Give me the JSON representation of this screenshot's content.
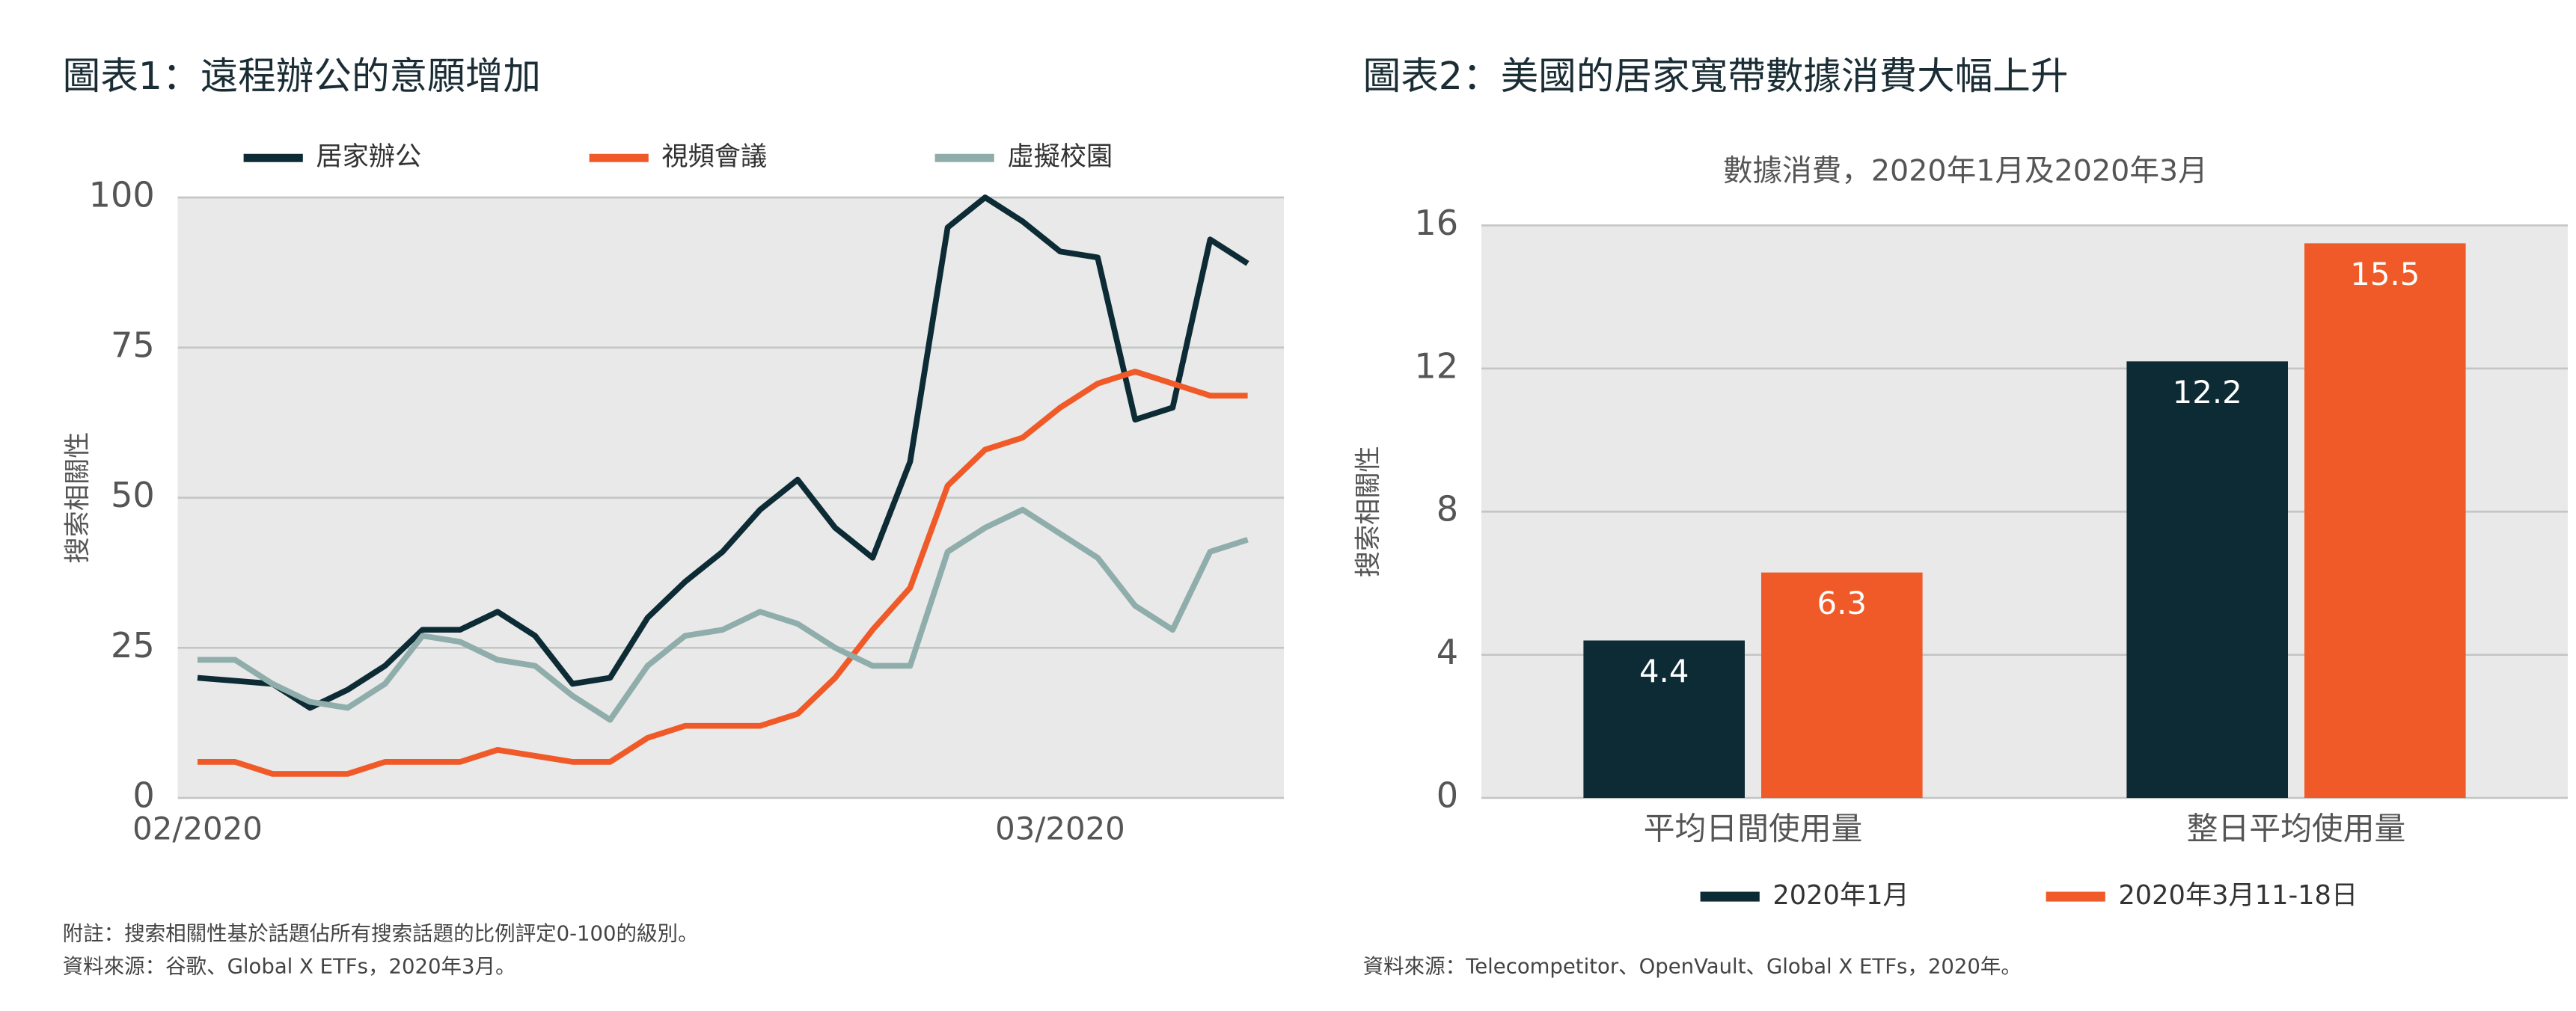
{
  "chart_data": [
    {
      "type": "line",
      "title": "圖表1：遠程辦公的意願增加",
      "y_label": "搜索相關性",
      "categories": [
        "02/2020",
        null,
        null,
        null,
        null,
        null,
        null,
        null,
        null,
        null,
        null,
        null,
        null,
        null,
        null,
        null,
        null,
        null,
        null,
        null,
        null,
        null,
        null,
        "03/2020",
        null,
        null,
        null,
        null,
        null
      ],
      "series": [
        {
          "name": "居家辦公",
          "color": "#0d2b35",
          "values": [
            20,
            19.5,
            19,
            15,
            18,
            22,
            28,
            28,
            31,
            27,
            19,
            20,
            30,
            36,
            41,
            48,
            53,
            45,
            40,
            56,
            95,
            100,
            96,
            91,
            90,
            63,
            65,
            93,
            89
          ]
        },
        {
          "name": "視頻會議",
          "color": "#f05a28",
          "values": [
            6,
            6,
            4,
            4,
            4,
            6,
            6,
            6,
            8,
            7,
            6,
            6,
            10,
            12,
            12,
            12,
            14,
            20,
            28,
            35,
            52,
            58,
            60,
            65,
            69,
            71,
            69,
            67,
            67
          ]
        },
        {
          "name": "虛擬校園",
          "color": "#8fadab",
          "values": [
            23,
            23,
            19,
            16,
            15,
            19,
            27,
            26,
            23,
            22,
            17,
            13,
            22,
            27,
            28,
            31,
            29,
            25,
            22,
            22,
            41,
            45,
            48,
            44,
            40,
            32,
            28,
            41,
            43
          ]
        }
      ],
      "ylim": [
        0,
        100
      ],
      "yticks": [
        0,
        25,
        50,
        75,
        100
      ],
      "grid": true,
      "legend": "top"
    },
    {
      "type": "bar",
      "title": "圖表2：美國的居家寬帶數據消費大幅上升",
      "subtitle": "數據消費，2020年1月及2020年3月",
      "y_label": "搜索相關性",
      "categories": [
        "平均日間使用量",
        "整日平均使用量"
      ],
      "series": [
        {
          "name": "2020年1月",
          "color": "#0d2b35",
          "values": [
            4.4,
            12.2
          ]
        },
        {
          "name": "2020年3月11-18日",
          "color": "#f05a28",
          "values": [
            6.3,
            15.5
          ]
        }
      ],
      "ylim": [
        0,
        16
      ],
      "yticks": [
        0,
        4,
        8,
        12,
        16
      ],
      "grid": true,
      "legend": "bottom"
    }
  ],
  "notes": {
    "left": [
      "附註：搜索相關性基於話題佔所有搜索話題的比例評定0-100的級別。",
      "資料來源：谷歌、Global X ETFs，2020年3月。"
    ],
    "right": [
      "資料來源：Telecompetitor、OpenVault、Global X ETFs，2020年。"
    ]
  }
}
